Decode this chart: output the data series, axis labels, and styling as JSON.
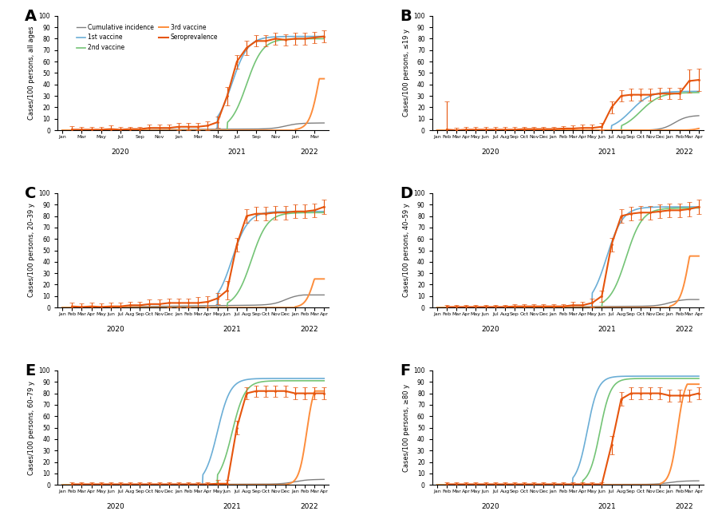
{
  "panels": [
    {
      "label": "A",
      "ylabel": "Cases/100 persons, all ages",
      "ylim": [
        0,
        100
      ],
      "show_legend": true
    },
    {
      "label": "B",
      "ylabel": "Cases/100 persons, ≤19 y",
      "ylim": [
        0,
        100
      ],
      "show_legend": false
    },
    {
      "label": "C",
      "ylabel": "Cases/100 persons, 20–39 y",
      "ylim": [
        0,
        100
      ],
      "show_legend": false
    },
    {
      "label": "D",
      "ylabel": "Cases/100 persons, 40–59 y",
      "ylim": [
        0,
        100
      ],
      "show_legend": false
    },
    {
      "label": "E",
      "ylabel": "Cases/100 persons, 60–79 y",
      "ylim": [
        0,
        100
      ],
      "show_legend": false
    },
    {
      "label": "F",
      "ylabel": "Cases/100 persons, ≥80 y",
      "ylim": [
        0,
        100
      ],
      "show_legend": false
    }
  ],
  "colors": {
    "cumulative_incidence": "#808080",
    "vaccine1": "#6baed6",
    "vaccine2": "#74c476",
    "vaccine3": "#fd8d3c",
    "seroprevalence": "#e6550d"
  },
  "legend_labels": {
    "cumulative_incidence": "Cumulative incidence",
    "vaccine1": "1st vaccine",
    "vaccine2": "2nd vaccine",
    "vaccine3": "3rd vaccine",
    "seroprevalence": "Seroprevalence"
  }
}
